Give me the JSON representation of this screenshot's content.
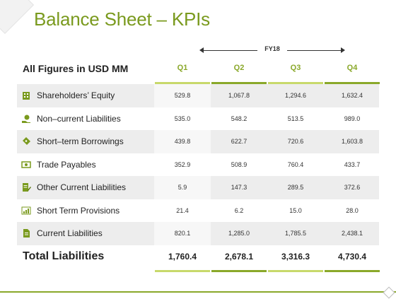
{
  "title": "Balance Sheet – KPIs",
  "period_label": "FY18",
  "header_label": "All Figures in USD MM",
  "quarters": [
    "Q1",
    "Q2",
    "Q3",
    "Q4"
  ],
  "rows": [
    {
      "label": "Shareholders’ Equity",
      "icon": "building-icon",
      "values": [
        "529.8",
        "1,067.8",
        "1,294.6",
        "1,632.4"
      ]
    },
    {
      "label": "Non–current Liabilities",
      "icon": "money-hand-icon",
      "values": [
        "535.0",
        "548.2",
        "513.5",
        "989.0"
      ]
    },
    {
      "label": "Short–term Borrowings",
      "icon": "money-tag-icon",
      "values": [
        "439.8",
        "622.7",
        "720.6",
        "1,603.8"
      ]
    },
    {
      "label": "Trade Payables",
      "icon": "cash-icon",
      "values": [
        "352.9",
        "508.9",
        "760.4",
        "433.7"
      ]
    },
    {
      "label": "Other Current Liabilities",
      "icon": "document-pen-icon",
      "values": [
        "5.9",
        "147.3",
        "289.5",
        "372.6"
      ]
    },
    {
      "label": "Short Term Provisions",
      "icon": "bar-chart-icon",
      "values": [
        "21.4",
        "6.2",
        "15.0",
        "28.0"
      ]
    },
    {
      "label": "Current Liabilities",
      "icon": "document-icon",
      "values": [
        "820.1",
        "1,285.0",
        "1,785.5",
        "2,438.1"
      ]
    }
  ],
  "total": {
    "label": "Total Liabilities",
    "values": [
      "1,760.4",
      "2,678.1",
      "3,316.3",
      "4,730.4"
    ]
  },
  "colors": {
    "accent": "#7a9a1e",
    "quarter_head": "#8aa82a",
    "bar_light": "#c8d96b",
    "bar_dark": "#8aa82a"
  }
}
